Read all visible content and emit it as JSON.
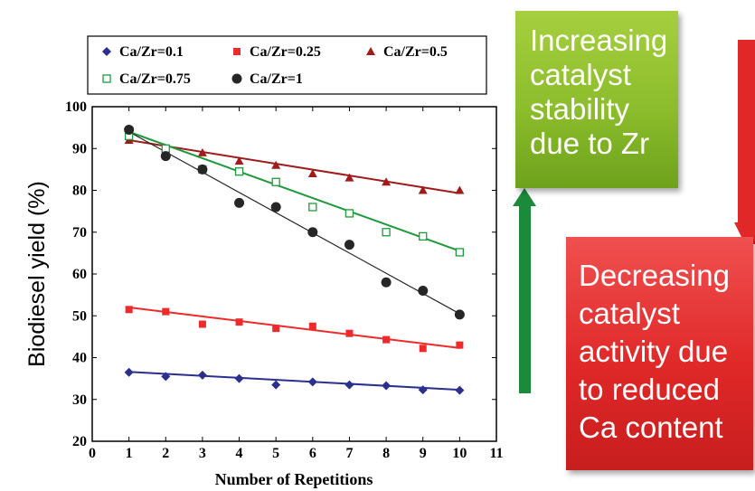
{
  "chart_data": {
    "type": "scatter",
    "xlabel": "Number of Repetitions",
    "ylabel": "Biodiesel yield (%)",
    "xlim": [
      0,
      11
    ],
    "ylim": [
      20,
      100
    ],
    "x_ticks": [
      "0",
      "1",
      "2",
      "3",
      "4",
      "5",
      "6",
      "7",
      "8",
      "9",
      "10",
      "11"
    ],
    "y_ticks": [
      "20",
      "30",
      "40",
      "50",
      "60",
      "70",
      "80",
      "90",
      "100"
    ],
    "legend_position": "top",
    "series": [
      {
        "name": "Ca/Zr=0.1",
        "marker": "diamond",
        "color": "#2b2f8f",
        "x": [
          1,
          2,
          3,
          4,
          5,
          6,
          7,
          8,
          9,
          10
        ],
        "y": [
          36.5,
          35.5,
          35.8,
          35.0,
          33.5,
          34.2,
          33.5,
          33.3,
          32.3,
          32.2
        ],
        "fit": [
          36.6,
          32.3
        ]
      },
      {
        "name": "Ca/Zr=0.25",
        "marker": "square",
        "color": "#ee2a2a",
        "x": [
          1,
          2,
          3,
          4,
          5,
          6,
          7,
          8,
          9,
          10
        ],
        "y": [
          51.5,
          51.0,
          48.0,
          48.5,
          47.0,
          47.5,
          45.8,
          44.3,
          42.2,
          43.0
        ],
        "fit": [
          52.0,
          42.3
        ]
      },
      {
        "name": "Ca/Zr=0.5",
        "marker": "triangle",
        "color": "#a01c1c",
        "x": [
          1,
          2,
          3,
          4,
          5,
          6,
          7,
          8,
          9,
          10
        ],
        "y": [
          92.0,
          90.0,
          89.0,
          87.0,
          86.0,
          84.0,
          83.0,
          82.0,
          80.0,
          80.0
        ],
        "fit": [
          92.0,
          79.3
        ]
      },
      {
        "name": "Ca/Zr=0.75",
        "marker": "open-square",
        "color": "#1f9a3a",
        "x": [
          1,
          2,
          3,
          4,
          5,
          6,
          7,
          8,
          9,
          10
        ],
        "y": [
          93.0,
          90.0,
          85.0,
          84.5,
          82.0,
          76.0,
          74.5,
          70.0,
          69.0,
          65.2
        ],
        "fit": [
          94.0,
          65.5
        ]
      },
      {
        "name": "Ca/Zr=1",
        "marker": "circle",
        "color": "#262626",
        "x": [
          1,
          2,
          3,
          4,
          5,
          6,
          7,
          8,
          9,
          10
        ],
        "y": [
          94.5,
          88.2,
          85.0,
          77.0,
          76.0,
          70.0,
          67.0,
          58.0,
          56.0,
          50.3
        ],
        "fit": [
          94.0,
          50.5
        ]
      }
    ]
  },
  "annotations": {
    "green_box": [
      "Increasing",
      "catalyst",
      "stability",
      "due to Zr"
    ],
    "red_box": [
      "Decreasing",
      "catalyst",
      "activity due",
      "to reduced",
      "Ca content"
    ],
    "green_arrow_color": "#1b8a3a",
    "red_arrow_color": "#e02828"
  }
}
